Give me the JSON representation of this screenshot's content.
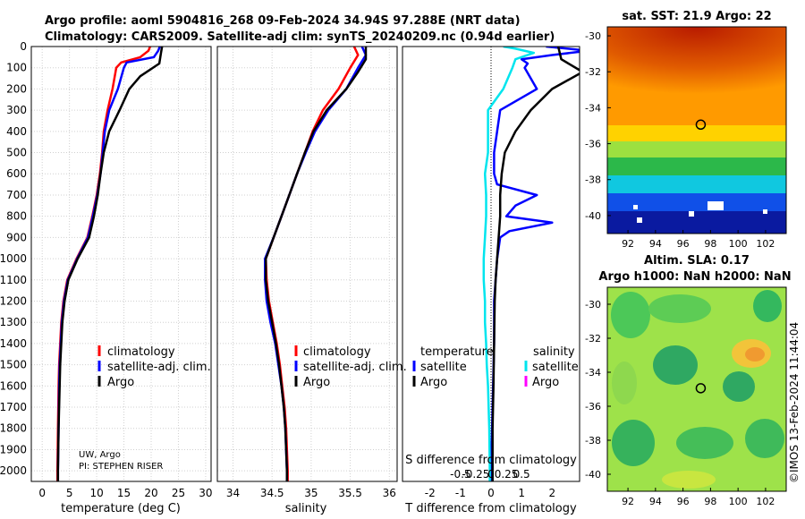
{
  "header": {
    "line1": "Argo profile: aoml 5904816_268 09-Feb-2024 34.94S 97.288E (NRT data)",
    "line2": "Climatology: CARS2009. Satellite-adj clim: synTS_20240209.nc (0.94d earlier)"
  },
  "footer_note": {
    "line1": "UW, Argo",
    "line2": "PI: STEPHEN RISER"
  },
  "side_stamp": "©IMOS 13-Feb-2024 11:44:04",
  "colors": {
    "climatology": "#ff0000",
    "satellite": "#0000ff",
    "argo": "#000000",
    "temp_satellite_diff": "#0000ff",
    "salinity_satellite_diff": "#00e5ee",
    "salinity_argo_diff": "#ff00ff"
  },
  "chart_data": [
    {
      "type": "line",
      "id": "temperature",
      "xlabel": "temperature (deg C)",
      "ylabel": "",
      "xlim": [
        -2,
        31
      ],
      "ylim": [
        2050,
        0
      ],
      "xticks": [
        0,
        5,
        10,
        15,
        20,
        25,
        30
      ],
      "xtick_labels": [
        "0",
        "5",
        "10",
        "15",
        "20",
        "25",
        "30"
      ],
      "yticks": [
        0,
        100,
        200,
        300,
        400,
        500,
        600,
        700,
        800,
        900,
        1000,
        1100,
        1200,
        1300,
        1400,
        1500,
        1600,
        1700,
        1800,
        1900,
        2000
      ],
      "ytick_labels": [
        "0",
        "100",
        "200",
        "300",
        "400",
        "500",
        "600",
        "700",
        "800",
        "900",
        "1000",
        "1100",
        "1200",
        "1300",
        "1400",
        "1500",
        "1600",
        "1700",
        "1800",
        "1900",
        "2000"
      ],
      "grid": true,
      "legend": [
        "climatology",
        "satellite-adj. clim.",
        "Argo"
      ],
      "series": [
        {
          "name": "climatology",
          "color": "#ff0000",
          "points": [
            [
              19.8,
              0
            ],
            [
              19.5,
              20
            ],
            [
              18,
              50
            ],
            [
              14.5,
              75
            ],
            [
              13.6,
              100
            ],
            [
              12.9,
              200
            ],
            [
              12.0,
              300
            ],
            [
              11.3,
              400
            ],
            [
              11.0,
              500
            ],
            [
              10.6,
              600
            ],
            [
              10.0,
              700
            ],
            [
              9.2,
              800
            ],
            [
              8.3,
              900
            ],
            [
              6.3,
              1000
            ],
            [
              4.6,
              1100
            ],
            [
              3.9,
              1200
            ],
            [
              3.5,
              1300
            ],
            [
              3.3,
              1400
            ],
            [
              3.1,
              1500
            ],
            [
              3.0,
              1600
            ],
            [
              2.9,
              1800
            ],
            [
              2.8,
              2000
            ],
            [
              2.8,
              2050
            ]
          ]
        },
        {
          "name": "satellite-adj. clim.",
          "color": "#0000ff",
          "points": [
            [
              21.6,
              0
            ],
            [
              21.3,
              20
            ],
            [
              20.5,
              50
            ],
            [
              15.5,
              75
            ],
            [
              15.0,
              100
            ],
            [
              13.9,
              200
            ],
            [
              12.3,
              300
            ],
            [
              11.5,
              400
            ],
            [
              11.1,
              500
            ],
            [
              10.7,
              600
            ],
            [
              10.1,
              700
            ],
            [
              9.3,
              800
            ],
            [
              8.4,
              900
            ],
            [
              6.4,
              1000
            ],
            [
              4.7,
              1100
            ],
            [
              4.0,
              1200
            ],
            [
              3.6,
              1300
            ],
            [
              3.4,
              1400
            ],
            [
              3.2,
              1500
            ],
            [
              3.1,
              1600
            ],
            [
              3.0,
              1800
            ],
            [
              2.9,
              2000
            ],
            [
              2.9,
              2050
            ]
          ]
        },
        {
          "name": "Argo",
          "color": "#000000",
          "points": [
            [
              22.0,
              0
            ],
            [
              21.8,
              30
            ],
            [
              21.5,
              80
            ],
            [
              18,
              140
            ],
            [
              16,
              200
            ],
            [
              14.2,
              300
            ],
            [
              12.3,
              400
            ],
            [
              11.3,
              500
            ],
            [
              10.7,
              600
            ],
            [
              10.2,
              700
            ],
            [
              9.5,
              800
            ],
            [
              8.6,
              900
            ],
            [
              6.5,
              1000
            ],
            [
              4.8,
              1100
            ],
            [
              4.1,
              1200
            ],
            [
              3.7,
              1300
            ],
            [
              3.5,
              1400
            ],
            [
              3.3,
              1500
            ],
            [
              3.2,
              1600
            ],
            [
              3.0,
              1800
            ],
            [
              2.9,
              2000
            ],
            [
              2.9,
              2050
            ]
          ]
        }
      ]
    },
    {
      "type": "line",
      "id": "salinity",
      "xlabel": "salinity",
      "xlim": [
        33.8,
        36.1
      ],
      "ylim": [
        2050,
        0
      ],
      "xticks": [
        34,
        34.5,
        35,
        35.5,
        36
      ],
      "xtick_labels": [
        "34",
        "34.5",
        "35",
        "35.5",
        "36"
      ],
      "grid": true,
      "legend": [
        "climatology",
        "satellite-adj. clim.",
        "Argo"
      ],
      "series": [
        {
          "name": "climatology",
          "color": "#ff0000",
          "points": [
            [
              35.55,
              0
            ],
            [
              35.6,
              40
            ],
            [
              35.5,
              100
            ],
            [
              35.35,
              200
            ],
            [
              35.15,
              300
            ],
            [
              35.02,
              400
            ],
            [
              34.92,
              500
            ],
            [
              34.82,
              600
            ],
            [
              34.72,
              700
            ],
            [
              34.62,
              800
            ],
            [
              34.52,
              900
            ],
            [
              34.42,
              1000
            ],
            [
              34.43,
              1100
            ],
            [
              34.46,
              1200
            ],
            [
              34.51,
              1300
            ],
            [
              34.56,
              1400
            ],
            [
              34.6,
              1500
            ],
            [
              34.63,
              1600
            ],
            [
              34.66,
              1700
            ],
            [
              34.68,
              1800
            ],
            [
              34.7,
              2000
            ],
            [
              34.7,
              2050
            ]
          ]
        },
        {
          "name": "satellite-adj. clim.",
          "color": "#0000ff",
          "points": [
            [
              35.65,
              0
            ],
            [
              35.7,
              40
            ],
            [
              35.6,
              100
            ],
            [
              35.45,
              200
            ],
            [
              35.22,
              300
            ],
            [
              35.05,
              400
            ],
            [
              34.93,
              500
            ],
            [
              34.82,
              600
            ],
            [
              34.72,
              700
            ],
            [
              34.62,
              800
            ],
            [
              34.52,
              900
            ],
            [
              34.41,
              1000
            ],
            [
              34.41,
              1100
            ],
            [
              34.43,
              1200
            ],
            [
              34.48,
              1300
            ],
            [
              34.54,
              1400
            ],
            [
              34.58,
              1500
            ],
            [
              34.62,
              1600
            ],
            [
              34.65,
              1700
            ],
            [
              34.67,
              1800
            ],
            [
              34.69,
              2000
            ],
            [
              34.69,
              2050
            ]
          ]
        },
        {
          "name": "Argo",
          "color": "#000000",
          "points": [
            [
              35.7,
              0
            ],
            [
              35.7,
              60
            ],
            [
              35.6,
              120
            ],
            [
              35.45,
              200
            ],
            [
              35.2,
              300
            ],
            [
              35.03,
              400
            ],
            [
              34.92,
              500
            ],
            [
              34.82,
              600
            ],
            [
              34.72,
              700
            ],
            [
              34.62,
              800
            ],
            [
              34.52,
              900
            ],
            [
              34.42,
              1000
            ],
            [
              34.42,
              1100
            ],
            [
              34.45,
              1200
            ],
            [
              34.5,
              1300
            ],
            [
              34.55,
              1400
            ],
            [
              34.59,
              1500
            ],
            [
              34.62,
              1600
            ],
            [
              34.65,
              1700
            ],
            [
              34.67,
              1800
            ],
            [
              34.69,
              2000
            ],
            [
              34.69,
              2050
            ]
          ]
        }
      ]
    },
    {
      "type": "line",
      "id": "difference",
      "xlabel": "T difference from climatology",
      "xlabel_top": "S difference from climatology",
      "xlim": [
        -2.9,
        2.9
      ],
      "ylim": [
        2050,
        0
      ],
      "xticks": [
        -2,
        -1,
        0,
        1,
        2
      ],
      "xtick_labels": [
        "-2",
        "-1",
        "0",
        "1",
        "2"
      ],
      "s_xticks": [
        -0.5,
        -0.25,
        0,
        0.25,
        0.5
      ],
      "s_xtick_labels": [
        "-0.5",
        "-0.25",
        "0",
        "0.25",
        "0.5"
      ],
      "s_scale": 2,
      "zero_line": "dotted",
      "legend_headers": [
        "temperature",
        "salinity"
      ],
      "legend_left": [
        "satellite",
        "Argo"
      ],
      "legend_right": [
        "satellite",
        "Argo"
      ],
      "series": [
        {
          "name": "T satellite - clim",
          "color": "#0000ff",
          "points": [
            [
              1.8,
              0
            ],
            [
              3.2,
              20
            ],
            [
              2.0,
              40
            ],
            [
              1.0,
              60
            ],
            [
              1.2,
              80
            ],
            [
              1.1,
              100
            ],
            [
              1.5,
              200
            ],
            [
              0.3,
              300
            ],
            [
              0.2,
              400
            ],
            [
              0.1,
              500
            ],
            [
              0.1,
              600
            ],
            [
              0.2,
              650
            ],
            [
              1.5,
              700
            ],
            [
              0.8,
              750
            ],
            [
              0.5,
              800
            ],
            [
              2.0,
              830
            ],
            [
              0.6,
              870
            ],
            [
              0.3,
              900
            ],
            [
              0.2,
              1000
            ],
            [
              0.15,
              1100
            ],
            [
              0.1,
              1200
            ],
            [
              0.1,
              1400
            ],
            [
              0.05,
              1700
            ],
            [
              0.0,
              2000
            ],
            [
              0.0,
              2050
            ]
          ]
        },
        {
          "name": "S satellite - clim",
          "color": "#00e5ee",
          "points": [
            [
              0.2,
              0
            ],
            [
              0.4,
              10
            ],
            [
              0.7,
              30
            ],
            [
              0.4,
              60
            ],
            [
              0.35,
              100
            ],
            [
              0.2,
              200
            ],
            [
              -0.05,
              300
            ],
            [
              -0.05,
              400
            ],
            [
              -0.05,
              500
            ],
            [
              -0.1,
              600
            ],
            [
              -0.08,
              700
            ],
            [
              -0.08,
              800
            ],
            [
              -0.1,
              900
            ],
            [
              -0.12,
              1000
            ],
            [
              -0.12,
              1100
            ],
            [
              -0.1,
              1200
            ],
            [
              -0.1,
              1300
            ],
            [
              -0.08,
              1400
            ],
            [
              -0.07,
              1500
            ],
            [
              -0.05,
              1600
            ],
            [
              -0.03,
              1800
            ],
            [
              -0.02,
              2000
            ],
            [
              -0.02,
              2050
            ]
          ]
        },
        {
          "name": "T Argo - clim",
          "color": "#000000",
          "points": [
            [
              2.2,
              0
            ],
            [
              2.3,
              60
            ],
            [
              3.0,
              120
            ],
            [
              2.0,
              200
            ],
            [
              1.3,
              300
            ],
            [
              0.8,
              400
            ],
            [
              0.45,
              500
            ],
            [
              0.35,
              600
            ],
            [
              0.3,
              700
            ],
            [
              0.3,
              800
            ],
            [
              0.25,
              900
            ],
            [
              0.2,
              1000
            ],
            [
              0.15,
              1100
            ],
            [
              0.12,
              1200
            ],
            [
              0.1,
              1400
            ],
            [
              0.08,
              1600
            ],
            [
              0.05,
              1800
            ],
            [
              0.05,
              2000
            ],
            [
              0.05,
              2050
            ]
          ]
        }
      ]
    },
    {
      "type": "heatmap",
      "id": "sst_map",
      "title": "sat. SST: 21.9 Argo: 22",
      "xlim": [
        90.5,
        103.5
      ],
      "ylim": [
        -41,
        -29.5
      ],
      "xticks": [
        92,
        94,
        96,
        98,
        100,
        102
      ],
      "xtick_labels": [
        "92",
        "94",
        "96",
        "98",
        "100",
        "102"
      ],
      "yticks": [
        -30,
        -32,
        -34,
        -36,
        -38,
        -40
      ],
      "ytick_labels": [
        "-30",
        "-32",
        "-34",
        "-36",
        "-38",
        "-40"
      ],
      "marker": [
        97.288,
        -34.94
      ]
    },
    {
      "type": "heatmap",
      "id": "sla_map",
      "title_line1": "Altim. SLA: 0.17",
      "title_line2": "Argo h1000: NaN h2000: NaN",
      "xlim": [
        90.5,
        103.5
      ],
      "ylim": [
        -41,
        -29
      ],
      "xticks": [
        92,
        94,
        96,
        98,
        100,
        102
      ],
      "xtick_labels": [
        "92",
        "94",
        "96",
        "98",
        "100",
        "102"
      ],
      "yticks": [
        -30,
        -32,
        -34,
        -36,
        -38,
        -40
      ],
      "ytick_labels": [
        "-30",
        "-32",
        "-34",
        "-36",
        "-38",
        "-40"
      ],
      "marker": [
        97.288,
        -34.94
      ]
    }
  ]
}
